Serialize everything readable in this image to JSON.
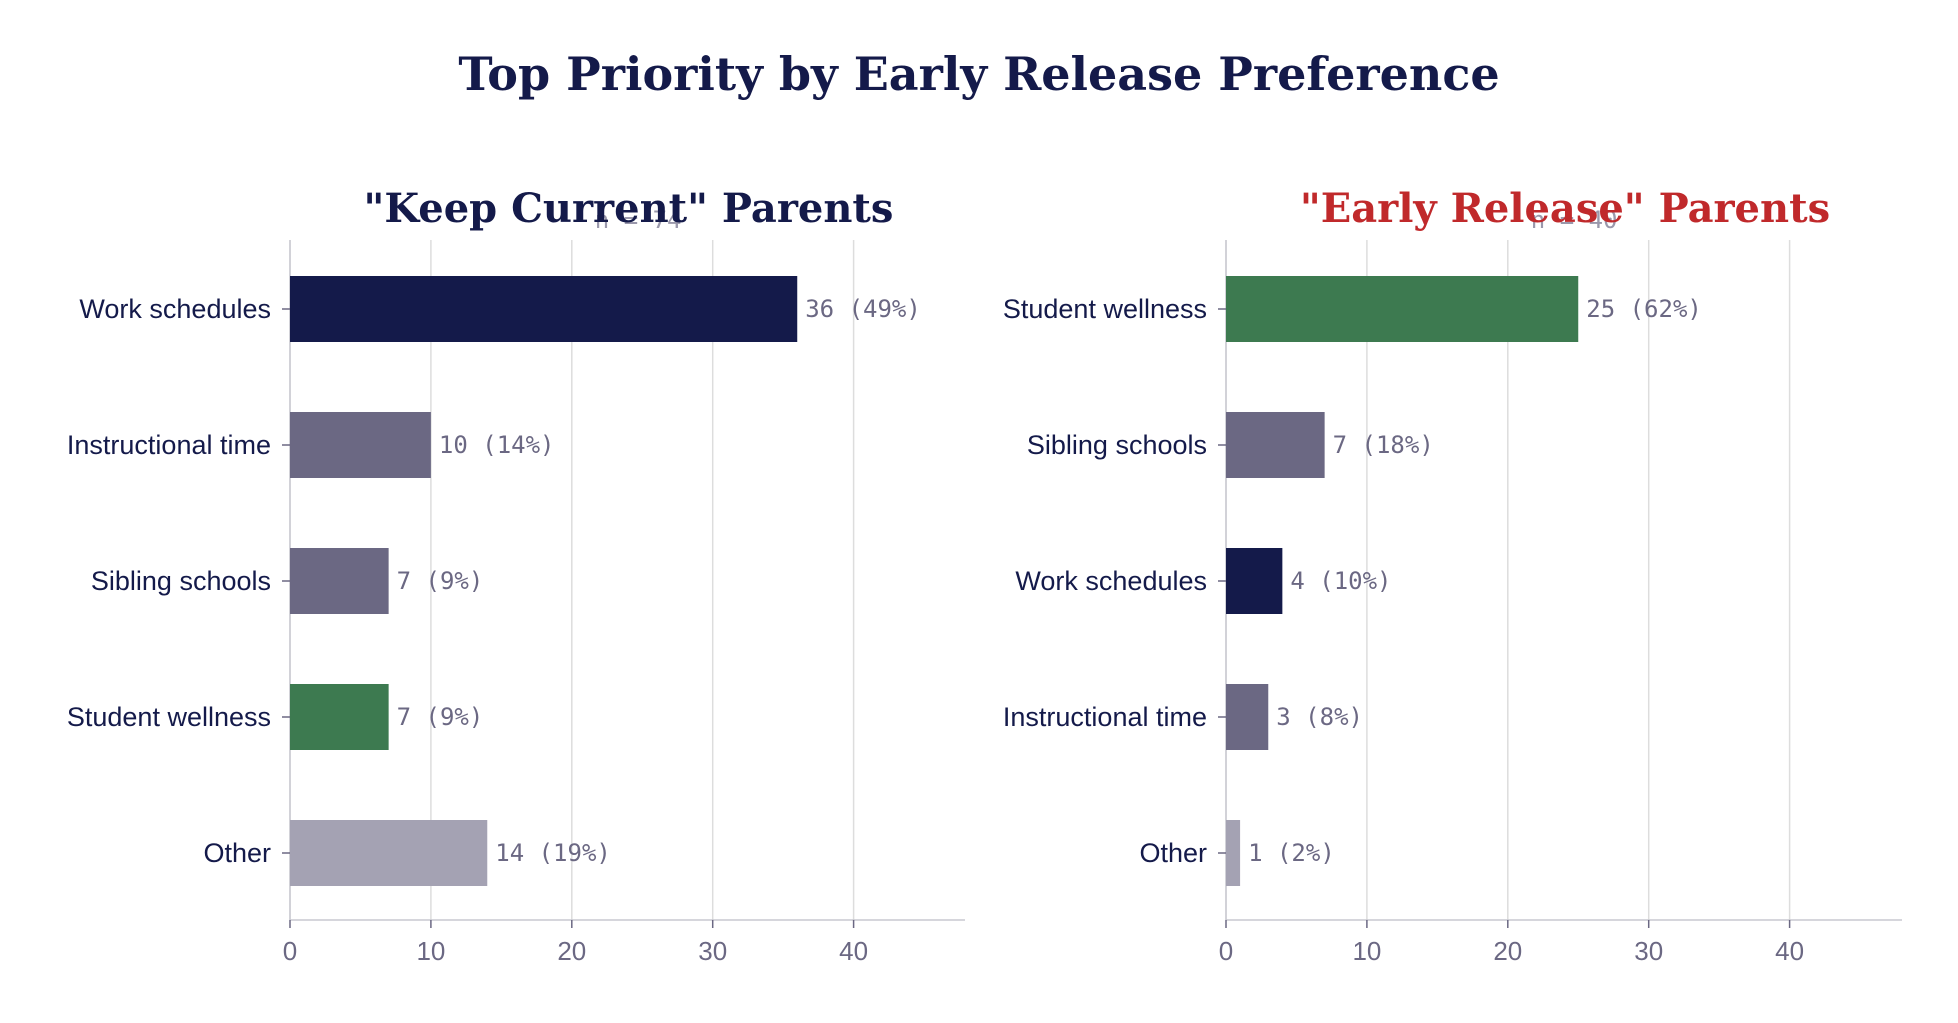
{
  "colors": {
    "navy": "#141a4a",
    "muted": "#6b6883",
    "green": "#3d7a50",
    "light": "#a4a2b3",
    "red": "#c0292b",
    "grid": "#dddddd",
    "axis": "#c8c8d0"
  },
  "chart_data": [
    {
      "type": "bar",
      "orientation": "horizontal",
      "suptitle": "Top Priority by Early Release Preference",
      "title": "\"Keep Current\" Parents",
      "title_color": "#141a4a",
      "n_label": "n = 74",
      "categories": [
        "Work schedules",
        "Instructional time",
        "Sibling schools",
        "Student wellness",
        "Other"
      ],
      "values": [
        36,
        10,
        7,
        7,
        14
      ],
      "value_labels": [
        "36 (49%)",
        "10 (14%)",
        "7 (9%)",
        "7 (9%)",
        "14 (19%)"
      ],
      "bar_colors": [
        "#141a4a",
        "#6b6883",
        "#6b6883",
        "#3d7a50",
        "#a4a2b3"
      ],
      "xlim": [
        0,
        48
      ],
      "xticks": [
        0,
        10,
        20,
        30,
        40
      ],
      "grid": true
    },
    {
      "type": "bar",
      "orientation": "horizontal",
      "title": "\"Early Release\" Parents",
      "title_color": "#c0292b",
      "n_label": "n = 40",
      "categories": [
        "Student wellness",
        "Sibling schools",
        "Work schedules",
        "Instructional time",
        "Other"
      ],
      "values": [
        25,
        7,
        4,
        3,
        1
      ],
      "value_labels": [
        "25 (62%)",
        "7 (18%)",
        "4 (10%)",
        "3 (8%)",
        "1 (2%)"
      ],
      "bar_colors": [
        "#3d7a50",
        "#6b6883",
        "#141a4a",
        "#6b6883",
        "#a4a2b3"
      ],
      "xlim": [
        0,
        48
      ],
      "xticks": [
        0,
        10,
        20,
        30,
        40
      ],
      "grid": true
    }
  ]
}
